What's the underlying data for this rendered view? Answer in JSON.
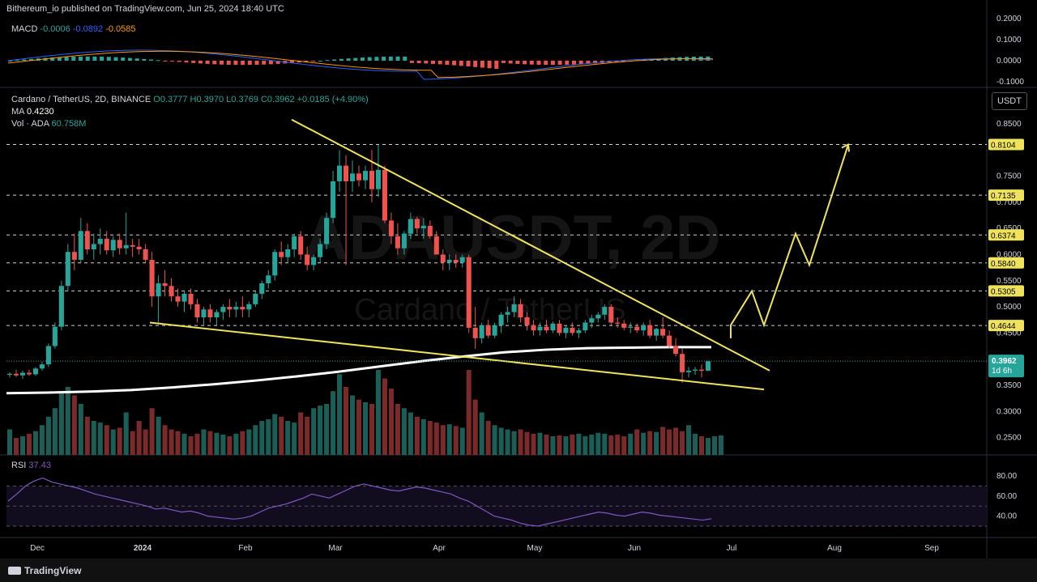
{
  "header": {
    "published": "Bithereum_io published on TradingView.com, Jun 25, 2024 18:40 UTC",
    "symbol": "Cardano / TetherUS, 2D, BINANCE",
    "ohlc": "O0.3777  H0.3970  L0.3769  C0.3962  +0.0185 (+4.90%)",
    "ma_label": "MA",
    "ma_value": "0.4230",
    "vol_label": "Vol · ADA",
    "vol_value": "60.758M",
    "macd_label": "MACD",
    "macd_values": [
      "-0.0006",
      "-0.0892",
      "-0.0585"
    ],
    "rsi_label": "RSI",
    "rsi_value": "37.43",
    "currency_button": "USDT"
  },
  "watermark": {
    "line1": "ADAUSDT, 2D",
    "line2": "Cardano / TetherUS"
  },
  "colors": {
    "up": "#26a69a",
    "down": "#ef5350",
    "trend": "#f0e35c",
    "ma": "#ffffff",
    "rsi": "#7e57c2",
    "macd": "#2962ff",
    "signal": "#ff9800",
    "label_bg": "#f0e35c"
  },
  "footer": {
    "brand": "TradingView"
  },
  "chart_data": {
    "type": "candlestick",
    "price_axis": {
      "ticks": [
        "0.8500",
        "0.7500",
        "0.7000",
        "0.6500",
        "0.6000",
        "0.5500",
        "0.5000",
        "0.4500",
        "0.3500",
        "0.3000",
        "0.2500"
      ],
      "range": [
        0.22,
        0.87
      ]
    },
    "macd_axis": {
      "ticks": [
        "0.2000",
        "0.1000",
        "0.0000",
        "-0.1000"
      ]
    },
    "rsi_axis": {
      "ticks": [
        "80.00",
        "60.00",
        "40.00"
      ],
      "bands": [
        70,
        50,
        30
      ]
    },
    "time_axis": [
      "Dec",
      "2024",
      "Feb",
      "Mar",
      "Apr",
      "May",
      "Jun",
      "Jul",
      "Aug",
      "Sep"
    ],
    "levels": [
      "0.8104",
      "0.7135",
      "0.6374",
      "0.5840",
      "0.5305",
      "0.4644"
    ],
    "current_price": {
      "value": "0.3962",
      "countdown": "1d 6h"
    },
    "candles": [
      [
        0.37,
        0.375,
        0.365,
        0.372
      ],
      [
        0.372,
        0.38,
        0.366,
        0.369
      ],
      [
        0.369,
        0.378,
        0.362,
        0.374
      ],
      [
        0.374,
        0.38,
        0.368,
        0.371
      ],
      [
        0.371,
        0.385,
        0.368,
        0.382
      ],
      [
        0.382,
        0.395,
        0.378,
        0.39
      ],
      [
        0.39,
        0.43,
        0.385,
        0.425
      ],
      [
        0.425,
        0.47,
        0.42,
        0.462
      ],
      [
        0.462,
        0.55,
        0.455,
        0.54
      ],
      [
        0.54,
        0.62,
        0.53,
        0.605
      ],
      [
        0.605,
        0.64,
        0.57,
        0.59
      ],
      [
        0.59,
        0.67,
        0.585,
        0.645
      ],
      [
        0.645,
        0.66,
        0.6,
        0.61
      ],
      [
        0.61,
        0.64,
        0.59,
        0.62
      ],
      [
        0.62,
        0.65,
        0.6,
        0.63
      ],
      [
        0.63,
        0.645,
        0.6,
        0.608
      ],
      [
        0.608,
        0.635,
        0.595,
        0.628
      ],
      [
        0.628,
        0.64,
        0.6,
        0.612
      ],
      [
        0.612,
        0.68,
        0.6,
        0.618
      ],
      [
        0.618,
        0.63,
        0.595,
        0.615
      ],
      [
        0.615,
        0.63,
        0.6,
        0.61
      ],
      [
        0.61,
        0.62,
        0.585,
        0.59
      ],
      [
        0.59,
        0.605,
        0.5,
        0.52
      ],
      [
        0.52,
        0.56,
        0.47,
        0.545
      ],
      [
        0.545,
        0.57,
        0.52,
        0.54
      ],
      [
        0.54,
        0.555,
        0.51,
        0.52
      ],
      [
        0.52,
        0.535,
        0.5,
        0.51
      ],
      [
        0.51,
        0.53,
        0.49,
        0.525
      ],
      [
        0.525,
        0.535,
        0.495,
        0.505
      ],
      [
        0.505,
        0.515,
        0.47,
        0.48
      ],
      [
        0.48,
        0.5,
        0.465,
        0.495
      ],
      [
        0.495,
        0.505,
        0.47,
        0.48
      ],
      [
        0.48,
        0.495,
        0.465,
        0.49
      ],
      [
        0.49,
        0.505,
        0.475,
        0.5
      ],
      [
        0.5,
        0.515,
        0.48,
        0.495
      ],
      [
        0.495,
        0.51,
        0.48,
        0.5
      ],
      [
        0.5,
        0.52,
        0.48,
        0.495
      ],
      [
        0.495,
        0.51,
        0.48,
        0.505
      ],
      [
        0.505,
        0.53,
        0.5,
        0.525
      ],
      [
        0.525,
        0.55,
        0.515,
        0.545
      ],
      [
        0.545,
        0.57,
        0.535,
        0.56
      ],
      [
        0.56,
        0.61,
        0.55,
        0.605
      ],
      [
        0.605,
        0.625,
        0.58,
        0.595
      ],
      [
        0.595,
        0.62,
        0.585,
        0.61
      ],
      [
        0.61,
        0.64,
        0.595,
        0.635
      ],
      [
        0.635,
        0.645,
        0.59,
        0.6
      ],
      [
        0.6,
        0.615,
        0.57,
        0.58
      ],
      [
        0.58,
        0.6,
        0.57,
        0.595
      ],
      [
        0.595,
        0.63,
        0.585,
        0.62
      ],
      [
        0.62,
        0.68,
        0.61,
        0.67
      ],
      [
        0.67,
        0.76,
        0.66,
        0.74
      ],
      [
        0.74,
        0.8,
        0.72,
        0.77
      ],
      [
        0.77,
        0.79,
        0.58,
        0.74
      ],
      [
        0.74,
        0.78,
        0.72,
        0.755
      ],
      [
        0.755,
        0.77,
        0.73,
        0.742
      ],
      [
        0.742,
        0.77,
        0.725,
        0.76
      ],
      [
        0.76,
        0.8,
        0.7,
        0.725
      ],
      [
        0.725,
        0.81,
        0.71,
        0.762
      ],
      [
        0.762,
        0.77,
        0.66,
        0.665
      ],
      [
        0.665,
        0.68,
        0.62,
        0.635
      ],
      [
        0.635,
        0.66,
        0.6,
        0.612
      ],
      [
        0.612,
        0.645,
        0.6,
        0.64
      ],
      [
        0.64,
        0.68,
        0.63,
        0.668
      ],
      [
        0.668,
        0.672,
        0.64,
        0.65
      ],
      [
        0.65,
        0.67,
        0.63,
        0.655
      ],
      [
        0.655,
        0.665,
        0.63,
        0.635
      ],
      [
        0.635,
        0.645,
        0.6,
        0.6
      ],
      [
        0.6,
        0.61,
        0.57,
        0.585
      ],
      [
        0.585,
        0.6,
        0.57,
        0.59
      ],
      [
        0.59,
        0.6,
        0.575,
        0.585
      ],
      [
        0.585,
        0.6,
        0.575,
        0.595
      ],
      [
        0.595,
        0.6,
        0.45,
        0.46
      ],
      [
        0.46,
        0.5,
        0.42,
        0.44
      ],
      [
        0.44,
        0.47,
        0.43,
        0.465
      ],
      [
        0.465,
        0.475,
        0.44,
        0.445
      ],
      [
        0.445,
        0.47,
        0.44,
        0.465
      ],
      [
        0.465,
        0.49,
        0.45,
        0.485
      ],
      [
        0.485,
        0.5,
        0.47,
        0.49
      ],
      [
        0.49,
        0.52,
        0.48,
        0.505
      ],
      [
        0.505,
        0.515,
        0.47,
        0.48
      ],
      [
        0.48,
        0.49,
        0.455,
        0.465
      ],
      [
        0.465,
        0.475,
        0.445,
        0.455
      ],
      [
        0.455,
        0.47,
        0.445,
        0.462
      ],
      [
        0.462,
        0.475,
        0.45,
        0.455
      ],
      [
        0.455,
        0.472,
        0.45,
        0.468
      ],
      [
        0.468,
        0.475,
        0.445,
        0.45
      ],
      [
        0.45,
        0.465,
        0.44,
        0.46
      ],
      [
        0.46,
        0.47,
        0.445,
        0.45
      ],
      [
        0.45,
        0.46,
        0.44,
        0.455
      ],
      [
        0.455,
        0.475,
        0.45,
        0.47
      ],
      [
        0.47,
        0.485,
        0.46,
        0.478
      ],
      [
        0.478,
        0.49,
        0.47,
        0.485
      ],
      [
        0.485,
        0.505,
        0.475,
        0.5
      ],
      [
        0.5,
        0.505,
        0.465,
        0.47
      ],
      [
        0.47,
        0.48,
        0.46,
        0.468
      ],
      [
        0.468,
        0.475,
        0.455,
        0.46
      ],
      [
        0.46,
        0.47,
        0.45,
        0.462
      ],
      [
        0.462,
        0.468,
        0.45,
        0.455
      ],
      [
        0.455,
        0.47,
        0.445,
        0.465
      ],
      [
        0.465,
        0.475,
        0.44,
        0.445
      ],
      [
        0.445,
        0.46,
        0.435,
        0.458
      ],
      [
        0.458,
        0.48,
        0.44,
        0.445
      ],
      [
        0.445,
        0.455,
        0.42,
        0.425
      ],
      [
        0.425,
        0.44,
        0.405,
        0.41
      ],
      [
        0.41,
        0.42,
        0.355,
        0.375
      ],
      [
        0.375,
        0.385,
        0.365,
        0.378
      ],
      [
        0.378,
        0.385,
        0.37,
        0.38
      ],
      [
        0.38,
        0.39,
        0.365,
        0.378
      ],
      [
        0.378,
        0.397,
        0.377,
        0.396
      ]
    ],
    "ma_values": [
      0.335,
      0.336,
      0.338,
      0.341,
      0.346,
      0.352,
      0.359,
      0.367,
      0.376,
      0.386,
      0.396,
      0.405,
      0.413,
      0.418,
      0.421,
      0.422,
      0.423,
      0.423
    ],
    "volumes": [
      30,
      20,
      22,
      25,
      28,
      35,
      45,
      55,
      75,
      80,
      70,
      60,
      45,
      40,
      38,
      35,
      30,
      32,
      50,
      28,
      40,
      30,
      55,
      45,
      35,
      30,
      28,
      25,
      22,
      25,
      30,
      28,
      26,
      24,
      22,
      25,
      28,
      30,
      35,
      40,
      42,
      48,
      45,
      40,
      38,
      50,
      45,
      55,
      58,
      60,
      75,
      95,
      80,
      70,
      65,
      62,
      60,
      100,
      90,
      78,
      60,
      55,
      50,
      45,
      42,
      40,
      38,
      35,
      36,
      34,
      32,
      100,
      65,
      50,
      40,
      35,
      32,
      30,
      28,
      30,
      27,
      25,
      26,
      24,
      22,
      23,
      22,
      24,
      25,
      22,
      24,
      26,
      25,
      23,
      24,
      22,
      25,
      30,
      26,
      28,
      27,
      33,
      30,
      32,
      28,
      35,
      25,
      22,
      20,
      22,
      23
    ],
    "rsi_values": [
      55,
      62,
      70,
      75,
      78,
      74,
      72,
      70,
      68,
      65,
      62,
      60,
      58,
      56,
      54,
      52,
      50,
      47,
      48,
      46,
      44,
      45,
      43,
      40,
      39,
      38,
      37,
      38,
      40,
      44,
      48,
      50,
      52,
      55,
      58,
      62,
      60,
      58,
      62,
      66,
      70,
      72,
      70,
      68,
      66,
      65,
      67,
      69,
      68,
      66,
      64,
      62,
      58,
      55,
      50,
      45,
      40,
      38,
      36,
      33,
      31,
      30,
      32,
      34,
      36,
      38,
      40,
      42,
      44,
      43,
      41,
      40,
      42,
      44,
      43,
      41,
      40,
      39,
      38,
      37,
      36,
      37.43
    ],
    "projection": [
      [
        0.465,
        7
      ],
      [
        0.53,
        9
      ],
      [
        0.465,
        11
      ],
      [
        0.64,
        16
      ],
      [
        0.58,
        19
      ],
      [
        0.8104,
        24
      ]
    ],
    "trendlines": {
      "upper": {
        "from": 0.858,
        "to": 0.378
      },
      "lower": {
        "from": 0.47,
        "to": 0.342
      }
    }
  }
}
